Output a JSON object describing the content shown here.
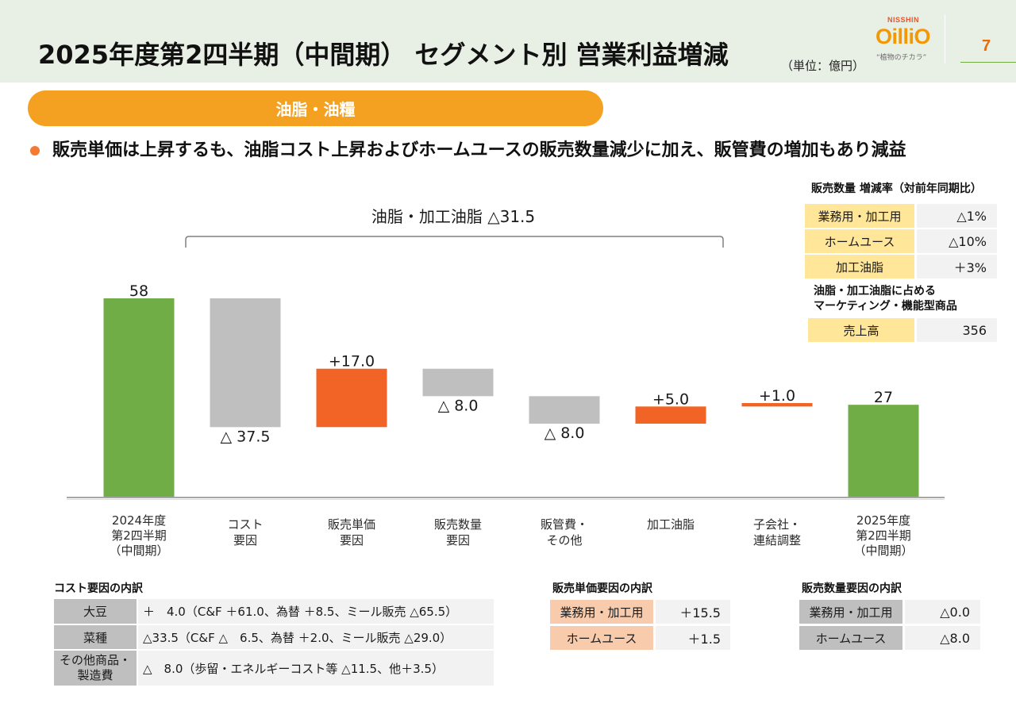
{
  "header": {
    "title": "2025年度第2四半期（中間期） セグメント別 営業利益増減",
    "unit": "（単位：億円）",
    "page_number": "7"
  },
  "logo": {
    "company": "NISSHIN",
    "brand": "OilliO",
    "tagline": "“植物のチカラ”"
  },
  "section": {
    "label": "油脂・油糧"
  },
  "summary": {
    "text": "販売単価は上昇するも、油脂コスト上昇およびホームユースの販売数量減少に加え、販管費の増加もあり減益"
  },
  "chart_data": {
    "type": "bar",
    "categories": [
      [
        "2024年度",
        "第2四半期",
        "（中間期）"
      ],
      [
        "コスト",
        "要因"
      ],
      [
        "販売単価",
        "要因"
      ],
      [
        "販売数量",
        "要因"
      ],
      [
        "販管費・",
        "その他"
      ],
      [
        "加工油脂"
      ],
      [
        "子会社・",
        "連結調整"
      ],
      [
        "2025年度",
        "第2四半期",
        "（中間期）"
      ]
    ],
    "values": [
      58,
      -37.5,
      17.0,
      -8.0,
      -8.0,
      5.0,
      1.0,
      27
    ],
    "is_total": [
      true,
      false,
      false,
      false,
      false,
      false,
      false,
      true
    ],
    "data_labels": [
      "58",
      "△ 37.5",
      "+17.0",
      "△ 8.0",
      "△ 8.0",
      "+5.0",
      "+1.0",
      "27"
    ],
    "colors": {
      "total": "#70ad47",
      "increase": "#f26426",
      "decrease": "#bfbfbf"
    },
    "bracket": {
      "label": "油脂・加工油脂 △31.5",
      "value": -31.5,
      "from_index": 1,
      "to_index": 5
    }
  },
  "volume_growth": {
    "title": "販売数量 増減率（対前年同期比）",
    "rows": [
      {
        "label": "業務用・加工用",
        "value": "△1%"
      },
      {
        "label": "ホームユース",
        "value": "△10%"
      },
      {
        "label": "加工油脂",
        "value": "＋3%"
      }
    ]
  },
  "marketing_sales": {
    "title_line1": "油脂・加工油脂に占める",
    "title_line2": "マーケティング・機能型商品",
    "rows": [
      {
        "label": "売上高",
        "value": "356"
      }
    ]
  },
  "cost_breakdown": {
    "title": "コスト要因の内訳",
    "rows": [
      {
        "label": [
          "大豆"
        ],
        "value": "＋　4.0（C&F ＋61.0、為替 ＋8.5、ミール販売 △65.5）"
      },
      {
        "label": [
          "菜種"
        ],
        "value": "△33.5（C&F △　6.5、為替 ＋2.0、ミール販売 △29.0）"
      },
      {
        "label": [
          "その他商品・",
          "製造費"
        ],
        "value": "△　8.0（歩留・エネルギーコスト等 △11.5、他＋3.5）"
      }
    ]
  },
  "price_breakdown": {
    "title": "販売単価要因の内訳",
    "rows": [
      {
        "label": "業務用・加工用",
        "value": "＋15.5"
      },
      {
        "label": "ホームユース",
        "value": "＋1.5"
      }
    ]
  },
  "volume_breakdown": {
    "title": "販売数量要因の内訳",
    "rows": [
      {
        "label": "業務用・加工用",
        "value": "△0.0"
      },
      {
        "label": "ホームユース",
        "value": "△8.0"
      }
    ]
  }
}
